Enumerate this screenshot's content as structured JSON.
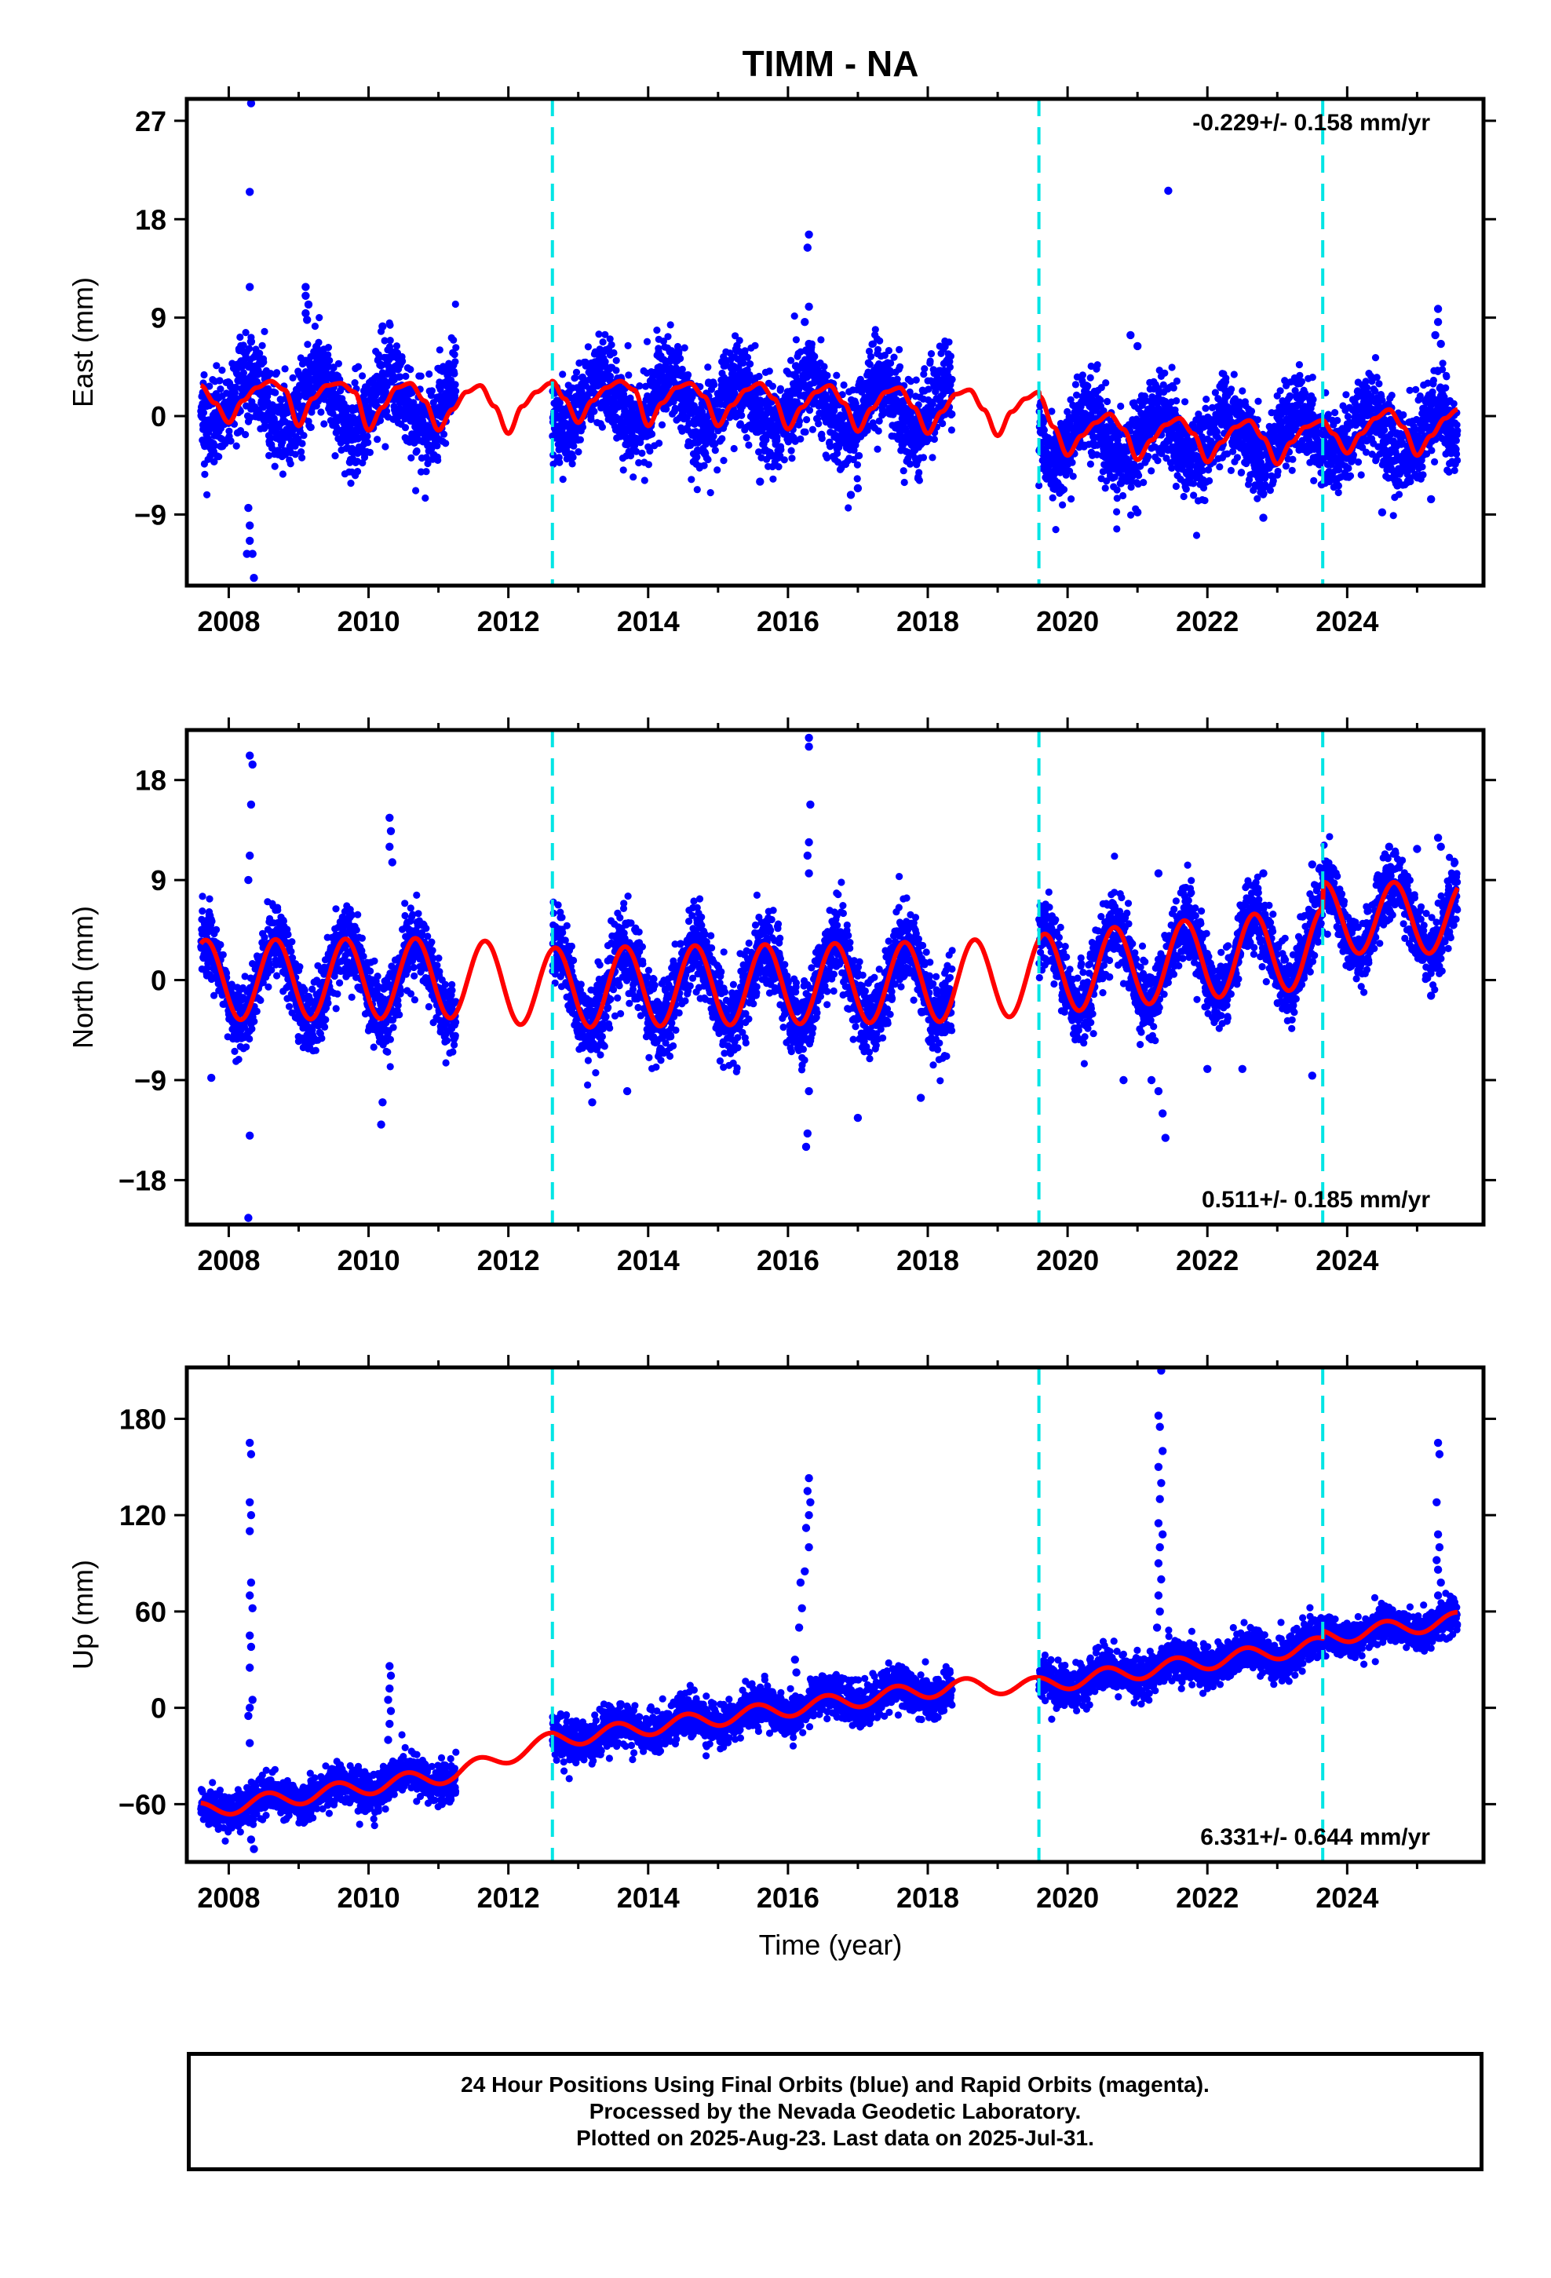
{
  "title": "TIMM - NA",
  "xlabel": "Time (year)",
  "caption": {
    "line1": "24 Hour Positions Using Final Orbits (blue) and Rapid Orbits (magenta).",
    "line2": "Processed by the Nevada Geodetic Laboratory.",
    "line3": "Plotted on 2025-Aug-23. Last data on 2025-Jul-31."
  },
  "colors": {
    "final_orbits": "#0000ff",
    "model": "#ff0000",
    "equipment_change": "#00e5e5",
    "axes": "#000000"
  },
  "chart_data": [
    {
      "type": "scatter",
      "ylabel": "East (mm)",
      "rate_text": "-0.229+/- 0.158 mm/yr",
      "rate_position": "top-right",
      "xlim": [
        2007.4,
        2025.95
      ],
      "ylim": [
        -15.5,
        29.0
      ],
      "xticks": [
        2008,
        2010,
        2012,
        2014,
        2016,
        2018,
        2020,
        2022,
        2024
      ],
      "yticks": [
        -9,
        0,
        9,
        18,
        27
      ],
      "ytick_labels": [
        "−9",
        "0",
        "9",
        "18",
        "27"
      ],
      "grid": false,
      "vertical_lines": [
        2012.63,
        2019.59,
        2023.65
      ],
      "model": {
        "series": "seasonal fit",
        "samples": [
          [
            2007.6,
            2.8
          ],
          [
            2007.8,
            1.2
          ],
          [
            2008.0,
            -0.6
          ],
          [
            2008.2,
            1.4
          ],
          [
            2008.4,
            2.6
          ],
          [
            2008.6,
            3.2
          ],
          [
            2008.8,
            2.4
          ],
          [
            2009.0,
            -0.9
          ],
          [
            2009.2,
            1.6
          ],
          [
            2009.4,
            2.8
          ],
          [
            2009.6,
            3.0
          ],
          [
            2009.8,
            2.2
          ],
          [
            2010.0,
            -1.3
          ],
          [
            2010.2,
            0.8
          ],
          [
            2010.4,
            2.6
          ],
          [
            2010.6,
            3.0
          ],
          [
            2010.8,
            1.4
          ],
          [
            2011.0,
            -1.3
          ],
          [
            2011.2,
            0.6
          ],
          [
            2011.4,
            2.2
          ],
          [
            2011.6,
            2.8
          ],
          [
            2011.8,
            0.9
          ],
          [
            2012.0,
            -1.6
          ],
          [
            2012.2,
            0.9
          ],
          [
            2012.4,
            2.2
          ],
          [
            2012.6,
            3.0
          ],
          [
            2012.63,
            3.2
          ],
          [
            2012.8,
            1.6
          ],
          [
            2013.0,
            -0.6
          ],
          [
            2013.2,
            1.4
          ],
          [
            2013.4,
            2.6
          ],
          [
            2013.6,
            3.2
          ],
          [
            2013.8,
            2.4
          ],
          [
            2014.0,
            -0.9
          ],
          [
            2014.2,
            1.2
          ],
          [
            2014.4,
            2.6
          ],
          [
            2014.6,
            3.0
          ],
          [
            2014.8,
            1.8
          ],
          [
            2015.0,
            -0.9
          ],
          [
            2015.2,
            1.0
          ],
          [
            2015.4,
            2.4
          ],
          [
            2015.6,
            3.0
          ],
          [
            2015.8,
            1.6
          ],
          [
            2016.0,
            -1.2
          ],
          [
            2016.2,
            0.8
          ],
          [
            2016.4,
            2.2
          ],
          [
            2016.6,
            2.8
          ],
          [
            2016.8,
            1.2
          ],
          [
            2017.0,
            -1.4
          ],
          [
            2017.2,
            0.7
          ],
          [
            2017.4,
            2.2
          ],
          [
            2017.6,
            2.6
          ],
          [
            2017.8,
            0.8
          ],
          [
            2018.0,
            -1.6
          ],
          [
            2018.2,
            0.4
          ],
          [
            2018.4,
            2.0
          ],
          [
            2018.6,
            2.4
          ],
          [
            2018.8,
            0.6
          ],
          [
            2019.0,
            -1.8
          ],
          [
            2019.2,
            0.4
          ],
          [
            2019.4,
            1.6
          ],
          [
            2019.59,
            2.2
          ],
          [
            2019.6,
            1.8
          ],
          [
            2019.8,
            -1.0
          ],
          [
            2020.0,
            -3.6
          ],
          [
            2020.2,
            -1.8
          ],
          [
            2020.4,
            -0.6
          ],
          [
            2020.6,
            0.2
          ],
          [
            2020.8,
            -1.2
          ],
          [
            2021.0,
            -4.0
          ],
          [
            2021.2,
            -2.2
          ],
          [
            2021.4,
            -0.8
          ],
          [
            2021.6,
            -0.2
          ],
          [
            2021.8,
            -1.6
          ],
          [
            2022.0,
            -4.2
          ],
          [
            2022.2,
            -2.4
          ],
          [
            2022.4,
            -1.0
          ],
          [
            2022.6,
            -0.4
          ],
          [
            2022.8,
            -2.0
          ],
          [
            2023.0,
            -4.4
          ],
          [
            2023.2,
            -2.4
          ],
          [
            2023.4,
            -1.0
          ],
          [
            2023.65,
            -0.4
          ],
          [
            2023.8,
            -1.6
          ],
          [
            2024.0,
            -3.4
          ],
          [
            2024.2,
            -1.6
          ],
          [
            2024.4,
            -0.2
          ],
          [
            2024.6,
            0.6
          ],
          [
            2024.8,
            -1.0
          ],
          [
            2025.0,
            -3.6
          ],
          [
            2025.2,
            -1.8
          ],
          [
            2025.4,
            -0.2
          ],
          [
            2025.58,
            0.6
          ]
        ]
      },
      "data_segments": [
        {
          "start": 2007.6,
          "end": 2011.25,
          "phase": 0.05,
          "amp": 2.4,
          "offset": 1.2,
          "trend": 0,
          "noise": 2.0
        },
        {
          "start": 2012.63,
          "end": 2018.35,
          "phase": 0.05,
          "amp": 2.3,
          "offset": 1.3,
          "trend": -0.1,
          "noise": 2.0
        },
        {
          "start": 2019.59,
          "end": 2025.58,
          "phase": 0.05,
          "amp": 2.2,
          "offset": -2.0,
          "trend": 0.05,
          "noise": 1.9
        }
      ],
      "outliers": [
        [
          2008.32,
          28.6
        ],
        [
          2008.3,
          20.5
        ],
        [
          2008.3,
          11.8
        ],
        [
          2008.32,
          6.8
        ],
        [
          2008.28,
          -8.4
        ],
        [
          2008.3,
          -10.0
        ],
        [
          2008.3,
          -11.4
        ],
        [
          2008.26,
          -12.6
        ],
        [
          2008.34,
          -12.6
        ],
        [
          2008.36,
          -14.8
        ],
        [
          2009.1,
          11.8
        ],
        [
          2009.1,
          11.0
        ],
        [
          2009.14,
          10.2
        ],
        [
          2009.1,
          9.4
        ],
        [
          2009.12,
          8.8
        ],
        [
          2010.2,
          8.2
        ],
        [
          2016.3,
          16.6
        ],
        [
          2016.28,
          15.4
        ],
        [
          2016.3,
          10.0
        ],
        [
          2016.24,
          8.6
        ],
        [
          2016.3,
          6.6
        ],
        [
          2016.26,
          6.0
        ],
        [
          2021.44,
          20.6
        ],
        [
          2020.9,
          7.4
        ],
        [
          2021.0,
          6.4
        ],
        [
          2021.0,
          -8.8
        ],
        [
          2022.8,
          -9.3
        ],
        [
          2024.5,
          -8.8
        ],
        [
          2025.3,
          9.8
        ],
        [
          2025.3,
          8.6
        ],
        [
          2025.26,
          7.4
        ],
        [
          2025.34,
          6.6
        ],
        [
          2025.2,
          -7.6
        ],
        [
          2016.9,
          -7.2
        ],
        [
          2017.0,
          -6.6
        ],
        [
          2012.9,
          -3.5
        ],
        [
          2015.6,
          -6.0
        ]
      ]
    },
    {
      "type": "scatter",
      "ylabel": "North (mm)",
      "rate_text": "0.511+/- 0.185 mm/yr",
      "rate_position": "bottom-right",
      "xlim": [
        2007.4,
        2025.95
      ],
      "ylim": [
        -22.0,
        22.5
      ],
      "xticks": [
        2008,
        2010,
        2012,
        2014,
        2016,
        2018,
        2020,
        2022,
        2024
      ],
      "yticks": [
        -18,
        -9,
        0,
        9,
        18
      ],
      "ytick_labels": [
        "−18",
        "−9",
        "0",
        "9",
        "18"
      ],
      "grid": false,
      "vertical_lines": [
        2012.63,
        2019.59,
        2023.65
      ],
      "data_segments": [
        {
          "start": 2007.6,
          "end": 2011.25,
          "phase": 0.42,
          "amp": 3.6,
          "offset": 0.0,
          "trend": 0.05,
          "noise": 1.6
        },
        {
          "start": 2012.63,
          "end": 2018.35,
          "phase": 0.42,
          "amp": 3.6,
          "offset": -0.7,
          "trend": 0.1,
          "noise": 1.8
        },
        {
          "start": 2019.59,
          "end": 2023.65,
          "phase": 0.42,
          "amp": 3.6,
          "offset": 0.5,
          "trend": 0.6,
          "noise": 1.6
        },
        {
          "start": 2023.65,
          "end": 2025.58,
          "phase": 0.42,
          "amp": 3.2,
          "offset": 5.6,
          "trend": 0.0,
          "noise": 1.5
        }
      ],
      "outliers": [
        [
          2008.3,
          20.2
        ],
        [
          2008.34,
          19.4
        ],
        [
          2008.32,
          15.8
        ],
        [
          2008.3,
          11.2
        ],
        [
          2008.28,
          9.0
        ],
        [
          2008.3,
          -14.0
        ],
        [
          2008.28,
          -21.4
        ],
        [
          2007.75,
          -8.8
        ],
        [
          2010.18,
          -13.0
        ],
        [
          2010.2,
          -11.0
        ],
        [
          2010.3,
          14.6
        ],
        [
          2010.32,
          13.4
        ],
        [
          2010.3,
          12.0
        ],
        [
          2010.34,
          10.6
        ],
        [
          2016.3,
          21.8
        ],
        [
          2016.3,
          21.0
        ],
        [
          2016.32,
          15.8
        ],
        [
          2016.3,
          12.4
        ],
        [
          2016.28,
          11.2
        ],
        [
          2016.3,
          9.6
        ],
        [
          2016.28,
          -13.8
        ],
        [
          2016.26,
          -15.0
        ],
        [
          2016.3,
          -10.0
        ],
        [
          2013.2,
          -11.0
        ],
        [
          2013.7,
          -10.0
        ],
        [
          2017.0,
          -12.4
        ],
        [
          2017.9,
          -10.6
        ],
        [
          2021.4,
          -14.2
        ],
        [
          2021.36,
          -12.0
        ],
        [
          2021.3,
          -10.0
        ],
        [
          2020.8,
          -9.0
        ],
        [
          2021.2,
          -9.0
        ],
        [
          2022.5,
          -8.0
        ],
        [
          2023.5,
          -8.6
        ],
        [
          2022.0,
          -8.0
        ],
        [
          2021.3,
          9.6
        ],
        [
          2022.8,
          9.6
        ],
        [
          2023.5,
          10.4
        ],
        [
          2025.3,
          12.8
        ],
        [
          2025.34,
          12.0
        ],
        [
          2024.6,
          12.0
        ],
        [
          2025.0,
          11.8
        ],
        [
          2023.8,
          10.0
        ],
        [
          2025.2,
          -1.4
        ]
      ]
    },
    {
      "type": "scatter",
      "ylabel": "Up (mm)",
      "rate_text": "6.331+/- 0.644 mm/yr",
      "rate_position": "bottom-right",
      "xlim": [
        2007.4,
        2025.95
      ],
      "ylim": [
        -96.0,
        212.0
      ],
      "xticks": [
        2008,
        2010,
        2012,
        2014,
        2016,
        2018,
        2020,
        2022,
        2024
      ],
      "yticks": [
        -60,
        0,
        60,
        120,
        180
      ],
      "ytick_labels": [
        "−60",
        "0",
        "60",
        "120",
        "180"
      ],
      "grid": false,
      "vertical_lines": [
        2012.63,
        2019.59,
        2023.65
      ],
      "data_segments": [
        {
          "start": 2007.6,
          "end": 2011.25,
          "phase": 0.3,
          "amp": 5.0,
          "offset": -64.0,
          "trend": 6.3,
          "noise": 6.0
        },
        {
          "start": 2012.63,
          "end": 2018.35,
          "phase": 0.3,
          "amp": 5.0,
          "offset": -20.0,
          "trend": 5.8,
          "noise": 6.5
        },
        {
          "start": 2019.59,
          "end": 2023.65,
          "phase": 0.3,
          "amp": 5.0,
          "offset": 14.0,
          "trend": 6.2,
          "noise": 6.5
        },
        {
          "start": 2023.65,
          "end": 2025.58,
          "phase": 0.3,
          "amp": 5.0,
          "offset": 44.0,
          "trend": 5.5,
          "noise": 5.5
        }
      ],
      "outliers": [
        [
          2008.3,
          165.0
        ],
        [
          2008.32,
          158.0
        ],
        [
          2008.3,
          128.0
        ],
        [
          2008.32,
          120.0
        ],
        [
          2008.3,
          110.0
        ],
        [
          2008.32,
          78.0
        ],
        [
          2008.3,
          70.0
        ],
        [
          2008.34,
          62.0
        ],
        [
          2008.3,
          45.0
        ],
        [
          2008.32,
          38.0
        ],
        [
          2008.3,
          25.0
        ],
        [
          2008.34,
          5.0
        ],
        [
          2008.3,
          0.0
        ],
        [
          2008.28,
          -5.0
        ],
        [
          2008.3,
          -22.0
        ],
        [
          2008.36,
          -88.0
        ],
        [
          2008.32,
          -82.0
        ],
        [
          2010.3,
          26.0
        ],
        [
          2010.32,
          20.0
        ],
        [
          2010.3,
          12.0
        ],
        [
          2010.28,
          5.0
        ],
        [
          2010.32,
          -2.0
        ],
        [
          2010.3,
          -10.0
        ],
        [
          2010.28,
          -20.0
        ],
        [
          2016.3,
          143.0
        ],
        [
          2016.28,
          135.0
        ],
        [
          2016.32,
          128.0
        ],
        [
          2016.3,
          120.0
        ],
        [
          2016.26,
          112.0
        ],
        [
          2016.3,
          100.0
        ],
        [
          2016.24,
          85.0
        ],
        [
          2016.18,
          78.0
        ],
        [
          2016.2,
          62.0
        ],
        [
          2016.16,
          50.0
        ],
        [
          2016.1,
          30.0
        ],
        [
          2016.12,
          22.0
        ],
        [
          2021.34,
          210.0
        ],
        [
          2021.3,
          182.0
        ],
        [
          2021.32,
          175.0
        ],
        [
          2021.36,
          160.0
        ],
        [
          2021.3,
          150.0
        ],
        [
          2021.34,
          140.0
        ],
        [
          2021.32,
          130.0
        ],
        [
          2021.3,
          115.0
        ],
        [
          2021.36,
          108.0
        ],
        [
          2021.32,
          100.0
        ],
        [
          2021.3,
          90.0
        ],
        [
          2021.34,
          80.0
        ],
        [
          2021.3,
          70.0
        ],
        [
          2021.32,
          60.0
        ],
        [
          2021.28,
          50.0
        ],
        [
          2025.3,
          165.0
        ],
        [
          2025.32,
          158.0
        ],
        [
          2025.28,
          128.0
        ],
        [
          2025.3,
          108.0
        ],
        [
          2025.32,
          100.0
        ],
        [
          2025.28,
          92.0
        ],
        [
          2025.3,
          86.0
        ],
        [
          2025.34,
          78.0
        ],
        [
          2025.3,
          70.0
        ]
      ]
    }
  ]
}
